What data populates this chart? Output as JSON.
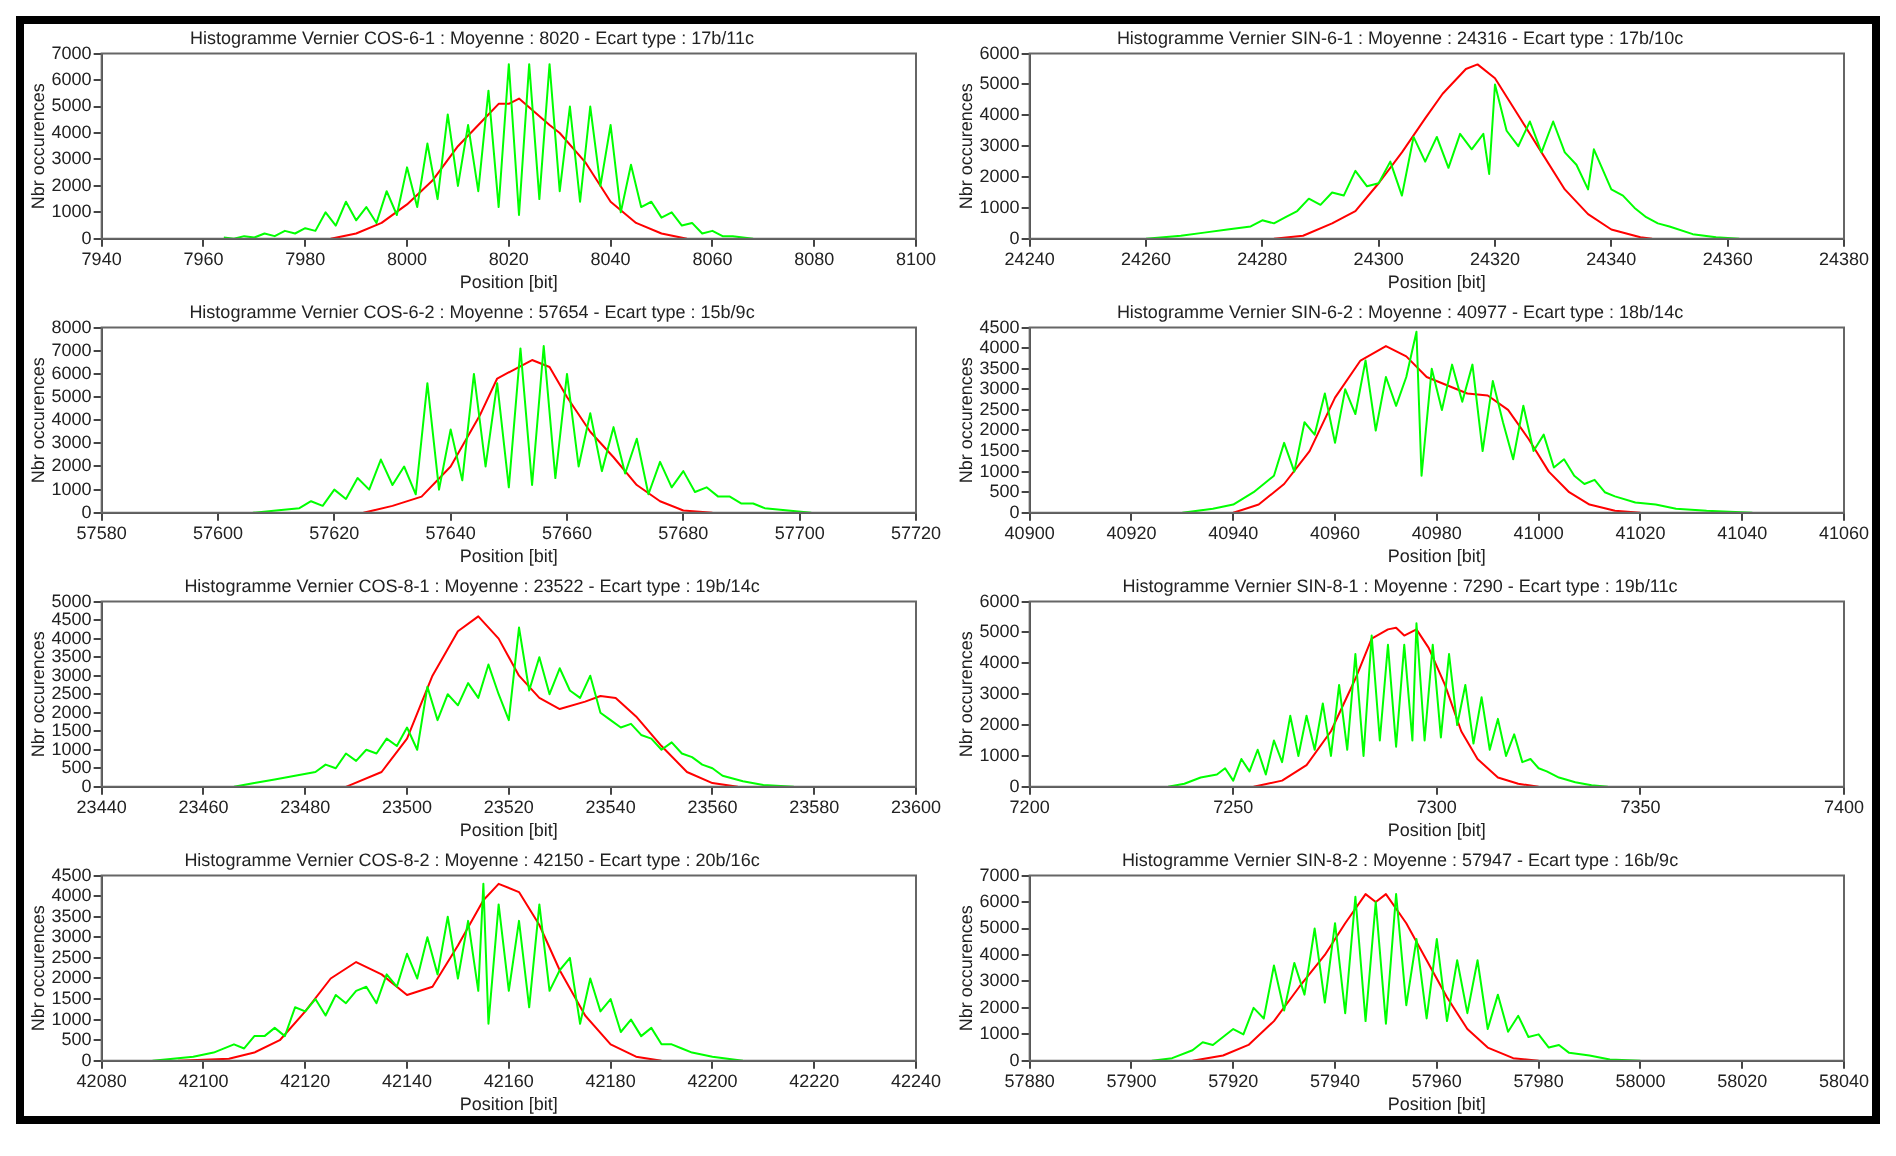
{
  "chart_data": [
    {
      "type": "line",
      "title": "Histogramme Vernier COS-6-1 : Moyenne : 8020 - Ecart type : 17b/11c",
      "xlabel": "Position [bit]",
      "ylabel": "Nbr occurences",
      "xlim": [
        7940,
        8100
      ],
      "xticks": [
        7940,
        7960,
        7980,
        8000,
        8020,
        8040,
        8060,
        8080,
        8100
      ],
      "ylim": [
        0,
        7000
      ],
      "yticks": [
        0,
        1000,
        2000,
        3000,
        4000,
        5000,
        6000,
        7000
      ],
      "marker": "none",
      "series": [
        {
          "color": "#00ff00",
          "x": [
            7964,
            7966,
            7968,
            7970,
            7972,
            7974,
            7976,
            7978,
            7980,
            7982,
            7984,
            7986,
            7988,
            7990,
            7992,
            7994,
            7996,
            7998,
            8000,
            8002,
            8004,
            8006,
            8008,
            8010,
            8012,
            8014,
            8016,
            8018,
            8020,
            8022,
            8024,
            8026,
            8028,
            8030,
            8032,
            8034,
            8036,
            8038,
            8040,
            8042,
            8044,
            8046,
            8048,
            8050,
            8052,
            8054,
            8056,
            8058,
            8060,
            8062,
            8064,
            8066,
            8068
          ],
          "values": [
            50,
            0,
            100,
            50,
            200,
            100,
            300,
            200,
            400,
            300,
            1000,
            500,
            1400,
            700,
            1200,
            600,
            1800,
            900,
            2700,
            1200,
            3600,
            1500,
            4700,
            2000,
            4300,
            1800,
            5600,
            1200,
            6600,
            900,
            6600,
            1500,
            6600,
            1800,
            5000,
            1400,
            5000,
            2000,
            4300,
            1000,
            2800,
            1200,
            1400,
            800,
            1000,
            500,
            600,
            200,
            300,
            100,
            100,
            50,
            0
          ]
        },
        {
          "color": "#ff0000",
          "x": [
            7985,
            7990,
            7995,
            8000,
            8005,
            8010,
            8015,
            8018,
            8020,
            8022,
            8025,
            8028,
            8030,
            8035,
            8040,
            8045,
            8050,
            8055
          ],
          "values": [
            0,
            200,
            600,
            1300,
            2200,
            3500,
            4500,
            5100,
            5100,
            5300,
            4800,
            4300,
            4000,
            2900,
            1400,
            600,
            200,
            0
          ]
        }
      ]
    },
    {
      "type": "line",
      "title": "Histogramme Vernier SIN-6-1 : Moyenne : 24316 - Ecart type : 17b/10c",
      "xlabel": "Position [bit]",
      "ylabel": "Nbr occurences",
      "xlim": [
        24240,
        24380
      ],
      "xticks": [
        24240,
        24260,
        24280,
        24300,
        24320,
        24340,
        24360,
        24380
      ],
      "ylim": [
        0,
        6000
      ],
      "yticks": [
        0,
        1000,
        2000,
        3000,
        4000,
        5000,
        6000
      ],
      "marker": "none",
      "series": [
        {
          "color": "#00ff00",
          "x": [
            24260,
            24266,
            24270,
            24274,
            24278,
            24280,
            24282,
            24284,
            24286,
            24288,
            24290,
            24292,
            24294,
            24296,
            24298,
            24300,
            24302,
            24304,
            24306,
            24308,
            24310,
            24312,
            24314,
            24316,
            24318,
            24319,
            24320,
            24322,
            24324,
            24326,
            24328,
            24330,
            24332,
            24334,
            24336,
            24337,
            24340,
            24342,
            24344,
            24346,
            24348,
            24350,
            24354,
            24358,
            24362
          ],
          "values": [
            0,
            100,
            200,
            300,
            400,
            600,
            500,
            700,
            900,
            1300,
            1100,
            1500,
            1400,
            2200,
            1700,
            1800,
            2500,
            1400,
            3300,
            2500,
            3300,
            2300,
            3400,
            2900,
            3400,
            2100,
            5000,
            3500,
            3000,
            3800,
            2800,
            3800,
            2800,
            2400,
            1600,
            2900,
            1600,
            1400,
            1000,
            700,
            500,
            400,
            150,
            50,
            0
          ]
        },
        {
          "color": "#ff0000",
          "x": [
            24282,
            24287,
            24292,
            24296,
            24300,
            24304,
            24308,
            24311,
            24315,
            24317,
            24320,
            24324,
            24328,
            24332,
            24336,
            24340,
            24345,
            24347
          ],
          "values": [
            0,
            100,
            500,
            900,
            1800,
            2800,
            3900,
            4700,
            5500,
            5650,
            5200,
            4000,
            2800,
            1600,
            800,
            300,
            50,
            0
          ]
        }
      ]
    },
    {
      "type": "line",
      "title": "Histogramme Vernier COS-6-2 : Moyenne : 57654 - Ecart type : 15b/9c",
      "xlabel": "Position [bit]",
      "ylabel": "Nbr occurences",
      "xlim": [
        57580,
        57720
      ],
      "xticks": [
        57580,
        57600,
        57620,
        57640,
        57660,
        57680,
        57700,
        57720
      ],
      "ylim": [
        0,
        8000
      ],
      "yticks": [
        0,
        1000,
        2000,
        3000,
        4000,
        5000,
        6000,
        7000,
        8000
      ],
      "marker": "none",
      "series": [
        {
          "color": "#00ff00",
          "x": [
            57606,
            57610,
            57614,
            57616,
            57618,
            57620,
            57622,
            57624,
            57626,
            57628,
            57630,
            57632,
            57634,
            57636,
            57638,
            57640,
            57642,
            57644,
            57646,
            57648,
            57650,
            57652,
            57654,
            57656,
            57658,
            57660,
            57662,
            57664,
            57666,
            57668,
            57670,
            57672,
            57674,
            57676,
            57678,
            57680,
            57682,
            57684,
            57686,
            57688,
            57690,
            57692,
            57694,
            57698,
            57702
          ],
          "values": [
            0,
            100,
            200,
            500,
            300,
            1000,
            600,
            1500,
            1000,
            2300,
            1200,
            2000,
            800,
            5600,
            1000,
            3600,
            1400,
            6000,
            2000,
            5600,
            1100,
            7100,
            1200,
            7200,
            1500,
            6000,
            2000,
            4300,
            1800,
            3700,
            1700,
            3200,
            800,
            2200,
            1100,
            1800,
            900,
            1100,
            700,
            700,
            400,
            400,
            200,
            100,
            0
          ]
        },
        {
          "color": "#ff0000",
          "x": [
            57625,
            57630,
            57635,
            57640,
            57645,
            57648,
            57651,
            57654,
            57657,
            57660,
            57664,
            57668,
            57672,
            57676,
            57680,
            57685
          ],
          "values": [
            0,
            300,
            700,
            2000,
            4200,
            5800,
            6200,
            6600,
            6300,
            5000,
            3500,
            2400,
            1200,
            500,
            100,
            0
          ]
        }
      ]
    },
    {
      "type": "line",
      "title": "Histogramme Vernier SIN-6-2 : Moyenne : 40977 - Ecart type : 18b/14c",
      "xlabel": "Position [bit]",
      "ylabel": "Nbr occurences",
      "xlim": [
        40900,
        41060
      ],
      "xticks": [
        40900,
        40920,
        40940,
        40960,
        40980,
        41000,
        41020,
        41040,
        41060
      ],
      "ylim": [
        0,
        4500
      ],
      "yticks": [
        0,
        500,
        1000,
        1500,
        2000,
        2500,
        3000,
        3500,
        4000,
        4500
      ],
      "marker": "none",
      "series": [
        {
          "color": "#00ff00",
          "x": [
            40930,
            40936,
            40940,
            40944,
            40946,
            40948,
            40950,
            40952,
            40954,
            40956,
            40958,
            40960,
            40962,
            40964,
            40966,
            40968,
            40970,
            40972,
            40974,
            40976,
            40977,
            40979,
            40981,
            40983,
            40985,
            40987,
            40989,
            40991,
            40993,
            40995,
            40997,
            40999,
            41001,
            41003,
            41005,
            41007,
            41009,
            41011,
            41013,
            41015,
            41019,
            41023,
            41027,
            41033,
            41042
          ],
          "values": [
            0,
            100,
            200,
            500,
            700,
            900,
            1700,
            1000,
            2200,
            1900,
            2900,
            1700,
            3000,
            2400,
            3700,
            2000,
            3300,
            2600,
            3300,
            4400,
            900,
            3500,
            2500,
            3600,
            2700,
            3600,
            1500,
            3200,
            2200,
            1300,
            2600,
            1500,
            1900,
            1100,
            1300,
            900,
            700,
            800,
            500,
            400,
            250,
            200,
            100,
            50,
            0
          ]
        },
        {
          "color": "#ff0000",
          "x": [
            40940,
            40945,
            40950,
            40955,
            40960,
            40965,
            40970,
            40974,
            40978,
            40982,
            40986,
            40990,
            40994,
            40998,
            41002,
            41006,
            41010,
            41015,
            41020
          ],
          "values": [
            0,
            200,
            700,
            1500,
            2800,
            3700,
            4050,
            3800,
            3300,
            3100,
            2900,
            2850,
            2500,
            1800,
            1000,
            500,
            200,
            50,
            0
          ]
        }
      ]
    },
    {
      "type": "line",
      "title": "Histogramme Vernier COS-8-1 : Moyenne : 23522 - Ecart type : 19b/14c",
      "xlabel": "Position [bit]",
      "ylabel": "Nbr occurences",
      "xlim": [
        23440,
        23600
      ],
      "xticks": [
        23440,
        23460,
        23480,
        23500,
        23520,
        23540,
        23560,
        23580,
        23600
      ],
      "ylim": [
        0,
        5000
      ],
      "yticks": [
        0,
        500,
        1000,
        1500,
        2000,
        2500,
        3000,
        3500,
        4000,
        4500,
        5000
      ],
      "marker": "none",
      "series": [
        {
          "color": "#00ff00",
          "x": [
            23466,
            23470,
            23474,
            23478,
            23482,
            23484,
            23486,
            23488,
            23490,
            23492,
            23494,
            23496,
            23498,
            23500,
            23502,
            23504,
            23506,
            23508,
            23510,
            23512,
            23514,
            23516,
            23518,
            23520,
            23522,
            23524,
            23526,
            23528,
            23530,
            23532,
            23534,
            23536,
            23538,
            23540,
            23542,
            23544,
            23546,
            23548,
            23550,
            23552,
            23554,
            23556,
            23558,
            23560,
            23562,
            23566,
            23570,
            23576
          ],
          "values": [
            0,
            100,
            200,
            300,
            400,
            600,
            500,
            900,
            700,
            1000,
            900,
            1300,
            1100,
            1600,
            1000,
            2700,
            1800,
            2500,
            2200,
            2800,
            2400,
            3300,
            2500,
            1800,
            4300,
            2600,
            3500,
            2500,
            3200,
            2600,
            2400,
            3000,
            2000,
            1800,
            1600,
            1700,
            1400,
            1300,
            1000,
            1200,
            900,
            800,
            600,
            500,
            300,
            150,
            50,
            0
          ]
        },
        {
          "color": "#ff0000",
          "x": [
            23488,
            23495,
            23500,
            23505,
            23510,
            23514,
            23518,
            23522,
            23526,
            23530,
            23535,
            23538,
            23541,
            23545,
            23550,
            23555,
            23560,
            23565
          ],
          "values": [
            0,
            400,
            1300,
            3000,
            4200,
            4600,
            4000,
            3000,
            2400,
            2100,
            2300,
            2450,
            2400,
            1900,
            1100,
            400,
            100,
            0
          ]
        }
      ]
    },
    {
      "type": "line",
      "title": "Histogramme Vernier SIN-8-1 : Moyenne : 7290 - Ecart type : 19b/11c",
      "xlabel": "Position [bit]",
      "ylabel": "Nbr occurences",
      "xlim": [
        7200,
        7400
      ],
      "xticks": [
        7200,
        7250,
        7300,
        7350,
        7400
      ],
      "ylim": [
        0,
        6000
      ],
      "yticks": [
        0,
        1000,
        2000,
        3000,
        4000,
        5000,
        6000
      ],
      "marker": "none",
      "series": [
        {
          "color": "#00ff00",
          "x": [
            7234,
            7238,
            7242,
            7246,
            7248,
            7250,
            7252,
            7254,
            7256,
            7258,
            7260,
            7262,
            7264,
            7266,
            7268,
            7270,
            7272,
            7274,
            7276,
            7278,
            7280,
            7282,
            7284,
            7286,
            7288,
            7290,
            7292,
            7294,
            7295,
            7297,
            7299,
            7301,
            7303,
            7305,
            7307,
            7309,
            7311,
            7313,
            7315,
            7317,
            7319,
            7321,
            7323,
            7325,
            7327,
            7330,
            7334,
            7338,
            7342
          ],
          "values": [
            0,
            100,
            300,
            400,
            600,
            200,
            900,
            500,
            1200,
            400,
            1500,
            800,
            2300,
            1000,
            2300,
            1200,
            2700,
            1000,
            3300,
            1200,
            4300,
            1000,
            4900,
            1500,
            4600,
            1300,
            4600,
            1500,
            5300,
            1500,
            4600,
            1600,
            4300,
            2000,
            3300,
            1400,
            2900,
            1200,
            2200,
            1000,
            1700,
            800,
            900,
            600,
            500,
            300,
            150,
            50,
            0
          ]
        },
        {
          "color": "#ff0000",
          "x": [
            7255,
            7262,
            7268,
            7274,
            7280,
            7284,
            7288,
            7290,
            7292,
            7295,
            7298,
            7302,
            7306,
            7310,
            7315,
            7320,
            7325
          ],
          "values": [
            0,
            200,
            700,
            1800,
            3500,
            4800,
            5100,
            5150,
            4900,
            5100,
            4500,
            3300,
            1800,
            900,
            300,
            100,
            0
          ]
        }
      ]
    },
    {
      "type": "line",
      "title": "Histogramme Vernier COS-8-2 : Moyenne : 42150 - Ecart type : 20b/16c",
      "xlabel": "Position [bit]",
      "ylabel": "Nbr occurences",
      "xlim": [
        42080,
        42240
      ],
      "xticks": [
        42080,
        42100,
        42120,
        42140,
        42160,
        42180,
        42200,
        42220,
        42240
      ],
      "ylim": [
        0,
        4500
      ],
      "yticks": [
        0,
        500,
        1000,
        1500,
        2000,
        2500,
        3000,
        3500,
        4000,
        4500
      ],
      "marker": "none",
      "series": [
        {
          "color": "#00ff00",
          "x": [
            42090,
            42098,
            42102,
            42106,
            42108,
            42110,
            42112,
            42114,
            42116,
            42118,
            42120,
            42122,
            42124,
            42126,
            42128,
            42130,
            42132,
            42134,
            42136,
            42138,
            42140,
            42142,
            42144,
            42146,
            42148,
            42150,
            42152,
            42154,
            42155,
            42156,
            42158,
            42160,
            42162,
            42164,
            42166,
            42168,
            42170,
            42172,
            42174,
            42176,
            42178,
            42180,
            42182,
            42184,
            42186,
            42188,
            42190,
            42192,
            42194,
            42196,
            42200,
            42206
          ],
          "values": [
            0,
            100,
            200,
            400,
            300,
            600,
            600,
            800,
            600,
            1300,
            1200,
            1500,
            1100,
            1600,
            1400,
            1700,
            1800,
            1400,
            2100,
            1800,
            2600,
            2000,
            3000,
            2100,
            3500,
            2000,
            3400,
            1700,
            4300,
            900,
            3800,
            1700,
            3400,
            1300,
            3800,
            1700,
            2200,
            2500,
            900,
            2000,
            1200,
            1500,
            700,
            1000,
            600,
            800,
            400,
            400,
            300,
            200,
            100,
            0
          ]
        },
        {
          "color": "#ff0000",
          "x": [
            42095,
            42105,
            42110,
            42115,
            42120,
            42125,
            42130,
            42135,
            42140,
            42145,
            42150,
            42155,
            42158,
            42162,
            42166,
            42170,
            42175,
            42180,
            42185,
            42190
          ],
          "values": [
            0,
            50,
            200,
            500,
            1200,
            2000,
            2400,
            2100,
            1600,
            1800,
            2800,
            3900,
            4300,
            4100,
            3300,
            2200,
            1100,
            400,
            100,
            0
          ]
        }
      ]
    },
    {
      "type": "line",
      "title": "Histogramme Vernier SIN-8-2 : Moyenne : 57947 - Ecart type : 16b/9c",
      "xlabel": "Position [bit]",
      "ylabel": "Nbr occurences",
      "xlim": [
        57880,
        58040
      ],
      "xticks": [
        57880,
        57900,
        57920,
        57940,
        57960,
        57980,
        58000,
        58020,
        58040
      ],
      "ylim": [
        0,
        7000
      ],
      "yticks": [
        0,
        1000,
        2000,
        3000,
        4000,
        5000,
        6000,
        7000
      ],
      "marker": "none",
      "series": [
        {
          "color": "#00ff00",
          "x": [
            57904,
            57908,
            57912,
            57914,
            57916,
            57918,
            57920,
            57922,
            57924,
            57926,
            57928,
            57930,
            57932,
            57934,
            57936,
            57938,
            57940,
            57942,
            57944,
            57946,
            57948,
            57950,
            57952,
            57954,
            57956,
            57958,
            57960,
            57962,
            57964,
            57966,
            57968,
            57970,
            57972,
            57974,
            57976,
            57978,
            57980,
            57982,
            57984,
            57986,
            57990,
            57994,
            58000
          ],
          "values": [
            0,
            100,
            400,
            700,
            600,
            900,
            1200,
            1000,
            2000,
            1600,
            3600,
            1900,
            3700,
            2500,
            5000,
            2200,
            5200,
            1800,
            6200,
            1500,
            6000,
            1400,
            6300,
            2100,
            4600,
            1600,
            4600,
            1500,
            3800,
            1800,
            3800,
            1200,
            2500,
            1100,
            1700,
            900,
            1000,
            500,
            600,
            300,
            200,
            50,
            0
          ]
        },
        {
          "color": "#ff0000",
          "x": [
            57912,
            57918,
            57923,
            57928,
            57933,
            57938,
            57942,
            57946,
            57948,
            57950,
            57954,
            57958,
            57962,
            57966,
            57970,
            57975,
            57980
          ],
          "values": [
            0,
            200,
            600,
            1500,
            2800,
            4000,
            5200,
            6300,
            6000,
            6300,
            5200,
            3800,
            2400,
            1200,
            500,
            100,
            0
          ]
        }
      ]
    }
  ]
}
